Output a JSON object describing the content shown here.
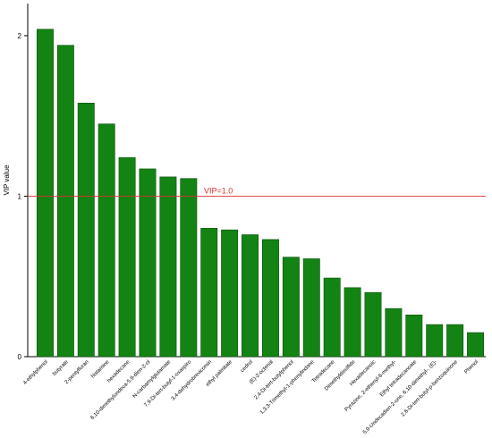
{
  "chart_data": {
    "type": "bar",
    "ylabel": "VIP value",
    "ylim": [
      0,
      2.2
    ],
    "yticks": [
      0,
      1,
      2
    ],
    "grid": false,
    "bar_color": "#138313",
    "bar_edge_color": "#0b4f0b",
    "reference_line": {
      "value": 1.0,
      "label": "VIP=1.0",
      "color": "#e03030"
    },
    "categories": [
      "4-ethylphenol",
      "butyrate",
      "2-pentylfuran",
      "histamine",
      "hexadecane",
      "6,10-dimethylundeca-5,9-dien-2-ol",
      "N-carbamylglutamate",
      "7,9-Di-tert-butyl-1-oxaspiro",
      "3,4-dehydrobrevicomin",
      "ethyl palmitate",
      "cedrol",
      "(E)-2-octenal",
      "2,4-Di-tert-butylphenol",
      "1,3,3-Trimethyl-1-phenylindane",
      "Tetradecane",
      "Dimethyldisulfide",
      "Hexadecanoic",
      "Pyrazine, 2-ethenyl-6-methyl-",
      "Ethyl tetradecanoate",
      "5,9-Undecadien-2-one, 6,10-dimethyl-, (E)-",
      "2,6-Di-tert-butyl-p-benzoquinone",
      "Phenol"
    ],
    "values": [
      2.04,
      1.94,
      1.58,
      1.45,
      1.24,
      1.17,
      1.12,
      1.11,
      0.8,
      0.79,
      0.76,
      0.73,
      0.62,
      0.61,
      0.49,
      0.43,
      0.4,
      0.3,
      0.26,
      0.2,
      0.2,
      0.15
    ]
  }
}
